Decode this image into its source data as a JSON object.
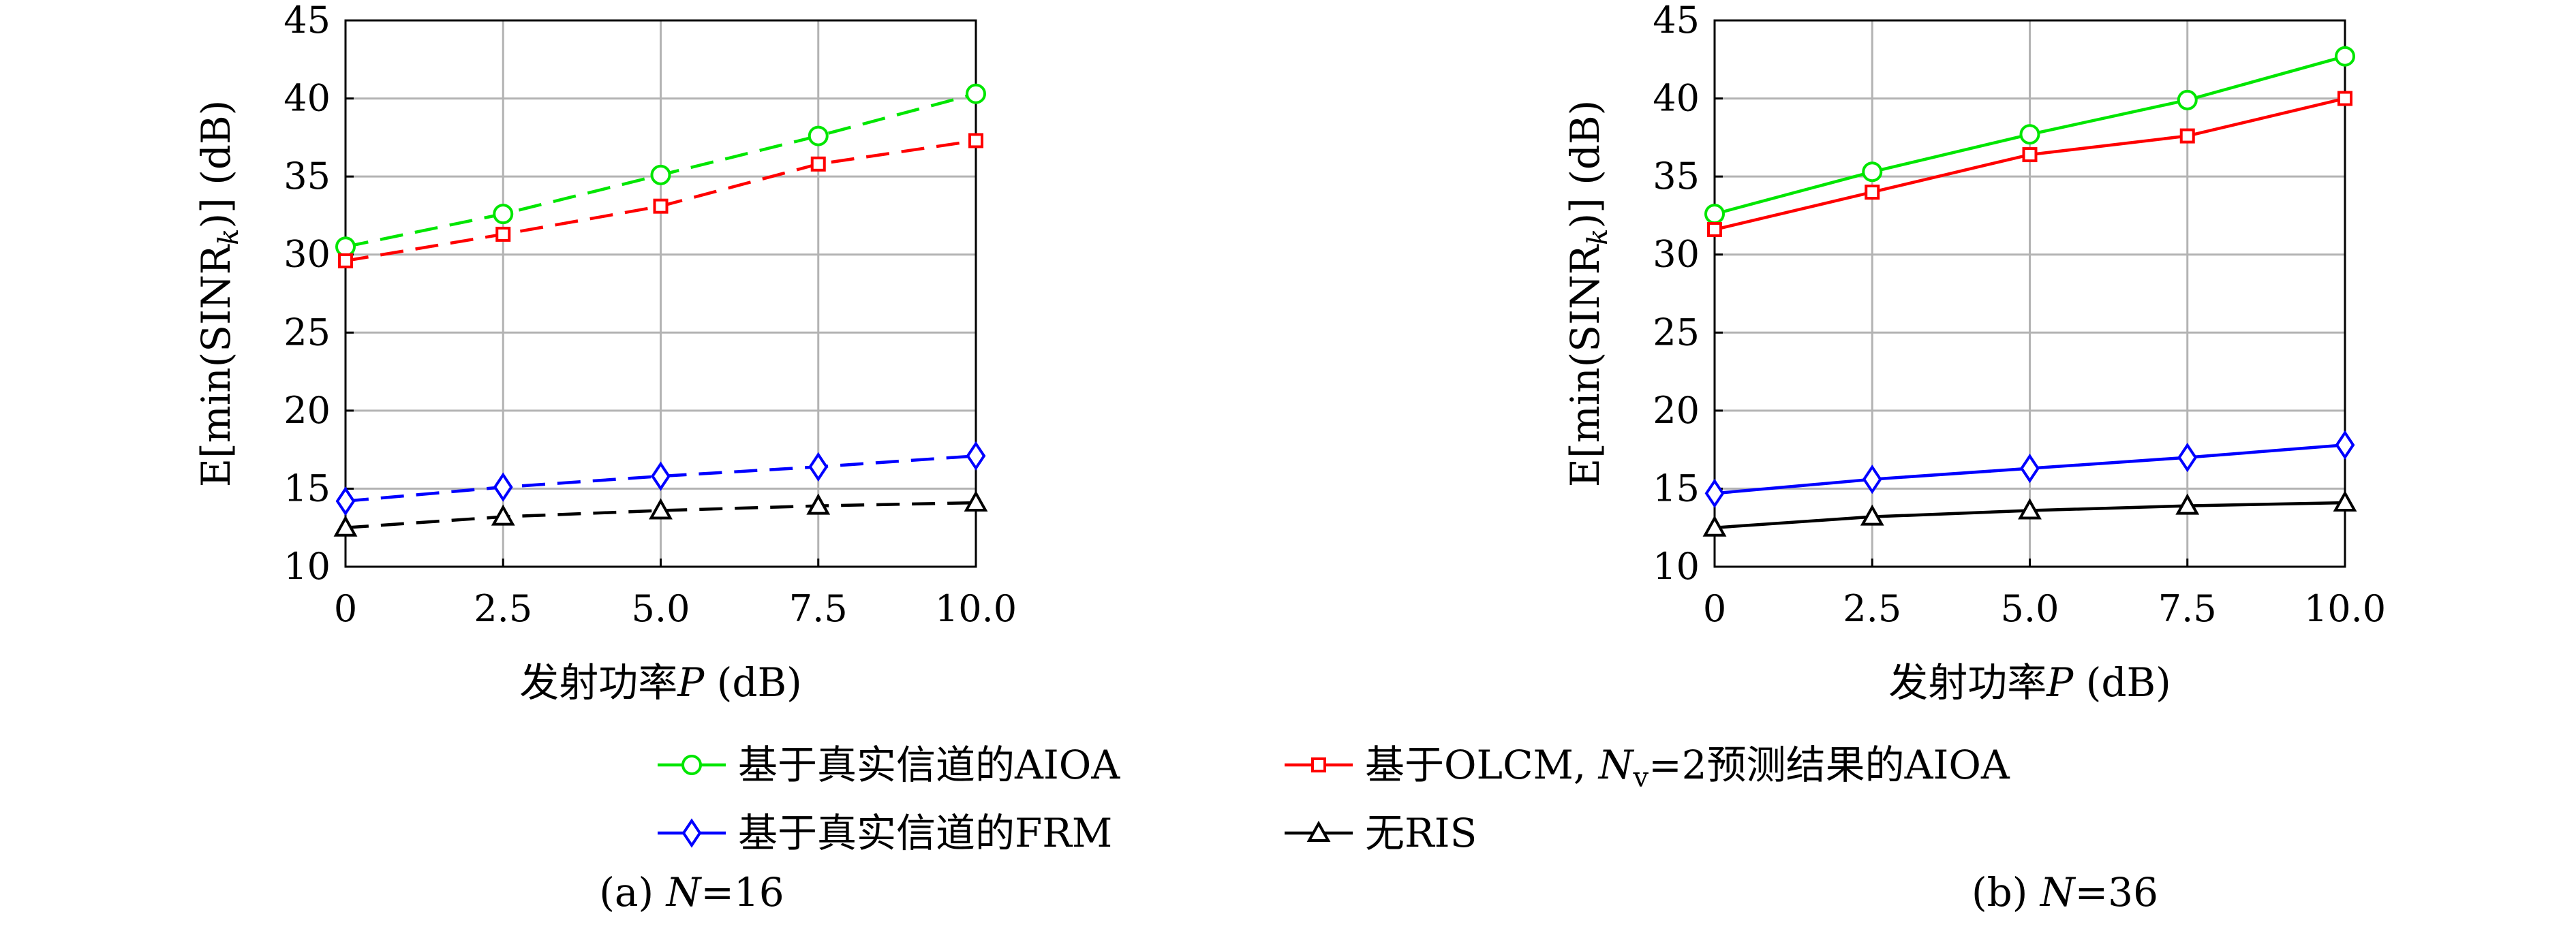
{
  "chart_data": [
    {
      "type": "line",
      "caption": "(a) N=16",
      "caption_prefix": "(a) ",
      "caption_var": "N",
      "caption_rest": "=16",
      "xlabel_text": "发射功率",
      "xlabel_var": "P",
      "xlabel_unit": " (dB)",
      "ylabel": "E[min(SINR_k)] (dB)",
      "ylabel_pre": "E[min(SINR",
      "ylabel_sub": "k",
      "ylabel_post": ")] (dB)",
      "x": [
        0,
        2.5,
        5.0,
        7.5,
        10.0
      ],
      "x_tick_labels": [
        "0",
        "2.5",
        "5.0",
        "7.5",
        "10.0"
      ],
      "xlim": [
        0,
        10
      ],
      "ylim": [
        10,
        45
      ],
      "y_ticks": [
        10,
        15,
        20,
        25,
        30,
        35,
        40,
        45
      ],
      "grid": true,
      "line_style": "dashed",
      "series": [
        {
          "key": "aioa_true",
          "values": [
            30.5,
            32.6,
            35.1,
            37.6,
            40.3
          ]
        },
        {
          "key": "aioa_olcm",
          "values": [
            29.6,
            31.3,
            33.1,
            35.8,
            37.3
          ]
        },
        {
          "key": "frm_true",
          "values": [
            14.2,
            15.1,
            15.8,
            16.4,
            17.1
          ]
        },
        {
          "key": "no_ris",
          "values": [
            12.5,
            13.2,
            13.6,
            13.9,
            14.1
          ]
        }
      ]
    },
    {
      "type": "line",
      "caption": "(b) N=36",
      "caption_prefix": "(b) ",
      "caption_var": "N",
      "caption_rest": "=36",
      "xlabel_text": "发射功率",
      "xlabel_var": "P",
      "xlabel_unit": " (dB)",
      "ylabel": "E[min(SINR_k)] (dB)",
      "ylabel_pre": "E[min(SINR",
      "ylabel_sub": "k",
      "ylabel_post": ")] (dB)",
      "x": [
        0,
        2.5,
        5.0,
        7.5,
        10.0
      ],
      "x_tick_labels": [
        "0",
        "2.5",
        "5.0",
        "7.5",
        "10.0"
      ],
      "xlim": [
        0,
        10
      ],
      "ylim": [
        10,
        45
      ],
      "y_ticks": [
        10,
        15,
        20,
        25,
        30,
        35,
        40,
        45
      ],
      "grid": true,
      "line_style": "solid",
      "series": [
        {
          "key": "aioa_true",
          "values": [
            32.6,
            35.3,
            37.7,
            39.9,
            42.7
          ]
        },
        {
          "key": "aioa_olcm",
          "values": [
            31.6,
            34.0,
            36.4,
            37.6,
            40.0
          ]
        },
        {
          "key": "frm_true",
          "values": [
            14.7,
            15.6,
            16.3,
            17.0,
            17.8
          ]
        },
        {
          "key": "no_ris",
          "values": [
            12.5,
            13.2,
            13.6,
            13.9,
            14.1
          ]
        }
      ]
    }
  ],
  "legend": {
    "placement": "bottom-center",
    "entries": [
      {
        "key": "aioa_true",
        "label": "基于真实信道的AIOA",
        "color": "#00e600",
        "marker": "circle"
      },
      {
        "key": "aioa_olcm",
        "label_pre": "基于OLCM, ",
        "label_var": "N",
        "label_sub": "v",
        "label_post": "=2预测结果的AIOA",
        "color": "#ff0000",
        "marker": "square"
      },
      {
        "key": "frm_true",
        "label": "基于真实信道的FRM",
        "color": "#0000ff",
        "marker": "diamond"
      },
      {
        "key": "no_ris",
        "label": "无RIS",
        "color": "#000000",
        "marker": "triangle"
      }
    ]
  }
}
